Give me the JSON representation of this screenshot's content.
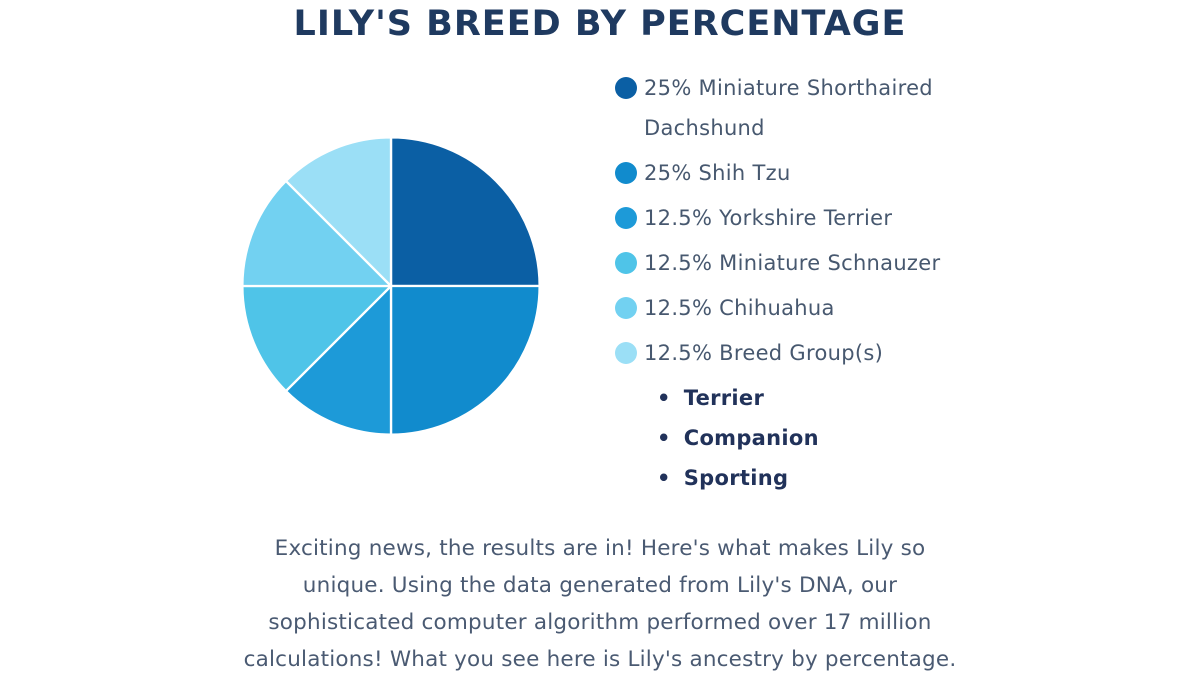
{
  "title": "LILY'S BREED BY PERCENTAGE",
  "chart_data": {
    "type": "pie",
    "title": "LILY'S BREED BY PERCENTAGE",
    "start_angle_deg": 0,
    "direction": "clockwise",
    "legend_position": "right",
    "slice_border_color": "#ffffff",
    "slices": [
      {
        "name": "miniature-shorthaired-dachshund",
        "label": "25% Miniature Shorthaired Dachshund",
        "value": 25,
        "color": "#0B5FA4"
      },
      {
        "name": "shih-tzu",
        "label": "25% Shih Tzu",
        "value": 25,
        "color": "#118BCD"
      },
      {
        "name": "yorkshire-terrier",
        "label": "12.5% Yorkshire Terrier",
        "value": 12.5,
        "color": "#1D9AD8"
      },
      {
        "name": "miniature-schnauzer",
        "label": "12.5% Miniature Schnauzer",
        "value": 12.5,
        "color": "#4FC4E8"
      },
      {
        "name": "chihuahua",
        "label": "12.5% Chihuahua",
        "value": 12.5,
        "color": "#72D1F1"
      },
      {
        "name": "breed-groups",
        "label": "12.5% Breed Group(s)",
        "value": 12.5,
        "color": "#9BDFF6"
      }
    ],
    "breed_group_sublist": [
      "Terrier",
      "Companion",
      "Sporting"
    ]
  },
  "paragraph": {
    "lines": [
      "Exciting news, the results are in! Here's what makes Lily so",
      "unique. Using the data generated from Lily's DNA, our",
      "sophisticated computer algorithm performed over 17 million",
      "calculations! What you see here is Lily's ancestry by percentage."
    ]
  },
  "colors": {
    "title_text": "#1F3A60",
    "legend_text": "#47586F",
    "sublist_text": "#21325A",
    "paragraph_text": "#4A5A72"
  }
}
